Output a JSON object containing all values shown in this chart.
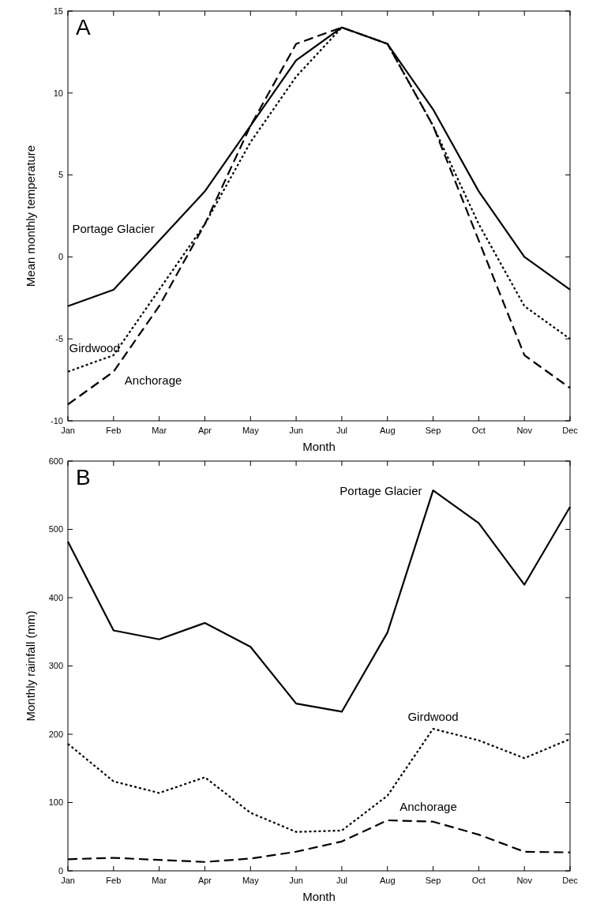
{
  "chart_data": [
    {
      "type": "line",
      "title": "A",
      "xlabel": "Month",
      "ylabel": "Mean monthly temperature",
      "categories": [
        "Jan",
        "Feb",
        "Mar",
        "Apr",
        "May",
        "Jun",
        "Jul",
        "Aug",
        "Sep",
        "Oct",
        "Nov",
        "Dec"
      ],
      "ylim": [
        -10,
        15
      ],
      "yticks": [
        -10,
        -5,
        0,
        5,
        10,
        15
      ],
      "grid": false,
      "marker": "none",
      "series": [
        {
          "name": "Portage Glacier",
          "color": "#000000",
          "line_style": "solid",
          "values": [
            -3,
            -2,
            1,
            4,
            8,
            12,
            14,
            13,
            9,
            4,
            0,
            -2
          ]
        },
        {
          "name": "Girdwood",
          "color": "#000000",
          "line_style": "dotted",
          "values": [
            -7,
            -6,
            -2,
            2,
            7,
            11,
            14,
            13,
            8,
            2,
            -3,
            -5
          ]
        },
        {
          "name": "Anchorage",
          "color": "#000000",
          "line_style": "dashed",
          "values": [
            -9,
            -7,
            -3,
            2,
            8,
            13,
            14,
            13,
            8,
            1,
            -6,
            -8
          ]
        }
      ]
    },
    {
      "type": "line",
      "title": "B",
      "xlabel": "Month",
      "ylabel": "Monthly rainfall (mm)",
      "categories": [
        "Jan",
        "Feb",
        "Mar",
        "Apr",
        "May",
        "Jun",
        "Jul",
        "Aug",
        "Sep",
        "Oct",
        "Nov",
        "Dec"
      ],
      "ylim": [
        0,
        600
      ],
      "yticks": [
        0,
        100,
        200,
        300,
        400,
        500,
        600
      ],
      "grid": false,
      "marker": "none",
      "series": [
        {
          "name": "Portage Glacier",
          "color": "#000000",
          "line_style": "solid",
          "values": [
            482,
            352,
            339,
            363,
            328,
            245,
            233,
            349,
            557,
            509,
            419,
            533
          ]
        },
        {
          "name": "Girdwood",
          "color": "#000000",
          "line_style": "dotted",
          "values": [
            186,
            131,
            114,
            137,
            85,
            57,
            59,
            110,
            208,
            191,
            165,
            193
          ]
        },
        {
          "name": "Anchorage",
          "color": "#000000",
          "line_style": "dashed",
          "values": [
            17,
            19,
            16,
            13,
            18,
            28,
            43,
            74,
            72,
            53,
            28,
            27
          ]
        }
      ]
    }
  ]
}
